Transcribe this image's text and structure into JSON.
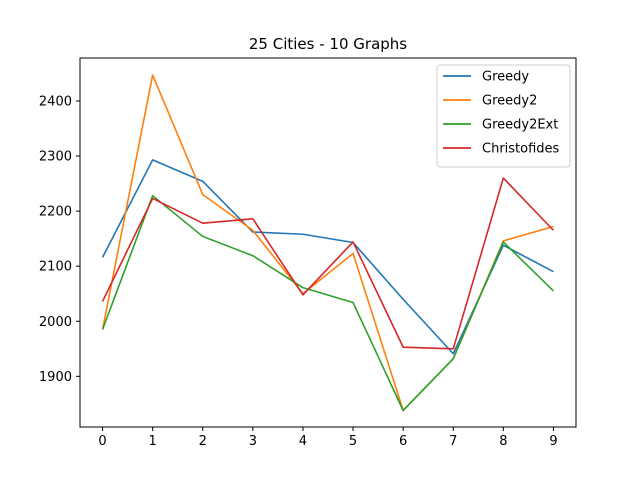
{
  "chart_data": {
    "type": "line",
    "title": "25 Cities - 10 Graphs",
    "xlabel": "",
    "ylabel": "",
    "x": [
      0,
      1,
      2,
      3,
      4,
      5,
      6,
      7,
      8,
      9
    ],
    "xlim": [
      -0.45,
      9.45
    ],
    "ylim": [
      1808,
      2478
    ],
    "yticks": [
      1900,
      2000,
      2100,
      2200,
      2300,
      2400
    ],
    "grid": false,
    "legend_position": "top-right",
    "series": [
      {
        "name": "Greedy",
        "color": "#1f77b4",
        "values": [
          2116,
          2293,
          2254,
          2162,
          2158,
          2143,
          2040,
          1941,
          2138,
          2090
        ]
      },
      {
        "name": "Greedy2",
        "color": "#ff7f0e",
        "values": [
          1985,
          2447,
          2230,
          2165,
          2050,
          2123,
          1838,
          1932,
          2146,
          2172
        ]
      },
      {
        "name": "Greedy2Ext",
        "color": "#2ca02c",
        "values": [
          1985,
          2228,
          2154,
          2119,
          2061,
          2034,
          1838,
          1932,
          2144,
          2055
        ]
      },
      {
        "name": "Christofides",
        "color": "#d62728",
        "values": [
          2036,
          2223,
          2178,
          2186,
          2048,
          2144,
          1953,
          1950,
          2260,
          2165
        ]
      }
    ]
  }
}
